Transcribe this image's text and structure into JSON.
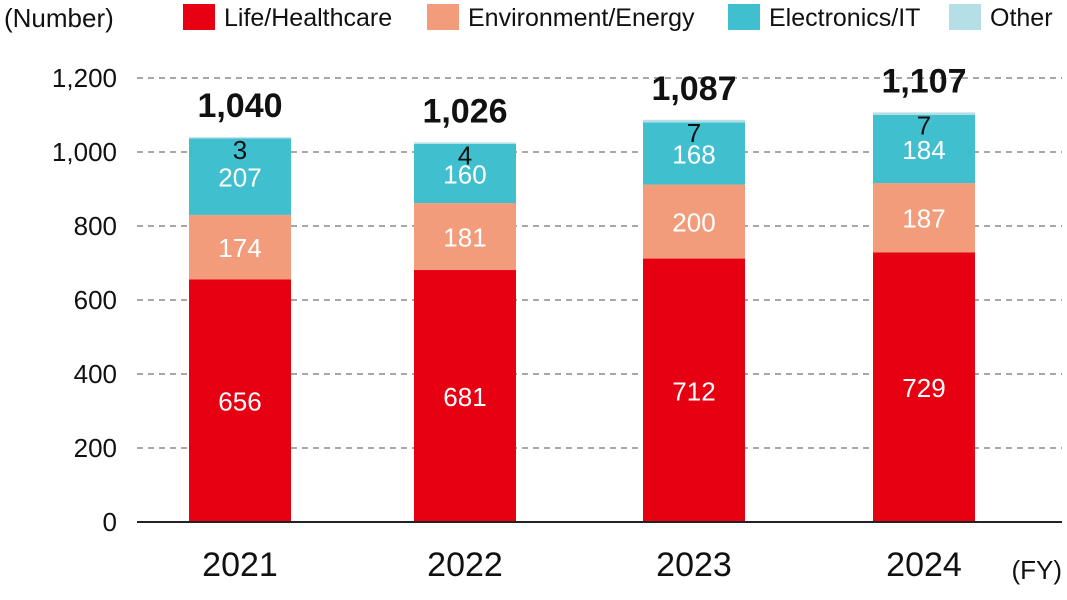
{
  "chart_data": {
    "type": "bar",
    "stacked": true,
    "title": "",
    "ylabel": "(Number)",
    "xlabel": "(FY)",
    "categories": [
      "2021",
      "2022",
      "2023",
      "2024"
    ],
    "series": [
      {
        "name": "Life/Healthcare",
        "color": "#e60012",
        "values": [
          656,
          681,
          712,
          729
        ]
      },
      {
        "name": "Environment/Energy",
        "color": "#f29c7b",
        "values": [
          174,
          181,
          200,
          187
        ]
      },
      {
        "name": "Electronics/IT",
        "color": "#40bfcf",
        "values": [
          207,
          160,
          168,
          184
        ]
      },
      {
        "name": "Other",
        "color": "#b5dfe7",
        "values": [
          3,
          4,
          7,
          7
        ]
      }
    ],
    "totals": [
      "1,040",
      "1,026",
      "1,087",
      "1,107"
    ],
    "segment_labels": [
      [
        "656",
        "681",
        "712",
        "729"
      ],
      [
        "174",
        "181",
        "200",
        "187"
      ],
      [
        "207",
        "160",
        "168",
        "184"
      ],
      [
        "3",
        "4",
        "7",
        "7"
      ]
    ],
    "ylim": [
      0,
      1200
    ],
    "yticks": [
      0,
      200,
      400,
      600,
      800,
      1000,
      1200
    ],
    "ytick_labels": [
      "0",
      "200",
      "400",
      "600",
      "800",
      "1,000",
      "1,200"
    ],
    "grid": true,
    "legend_position": "top"
  }
}
